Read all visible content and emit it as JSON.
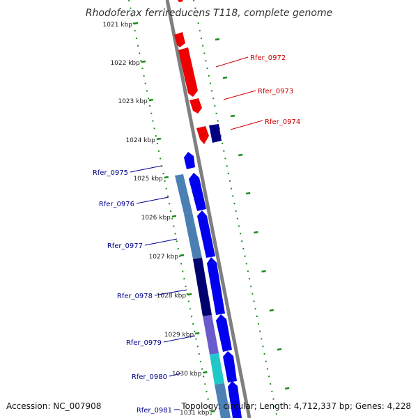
{
  "title": "Rhodoferax ferrireducens T118, complete genome",
  "footer": {
    "accession": "Accession: NC_007908",
    "summary": "Topology: circular; Length: 4,712,337 bp; Genes: 4,228"
  },
  "colors": {
    "backbone": "#7f7f7f",
    "tick": "#1a8a1a",
    "forward_strand": "#0000ee",
    "reverse_strand": "#ee0000",
    "label_blue": "#00008b",
    "label_red": "#cc0000"
  },
  "ticks": [
    {
      "kbp": 1021,
      "label": "1021 kbp"
    },
    {
      "kbp": 1022,
      "label": "1022 kbp"
    },
    {
      "kbp": 1023,
      "label": "1023 kbp"
    },
    {
      "kbp": 1024,
      "label": "1024 kbp"
    },
    {
      "kbp": 1025,
      "label": "1025 kbp"
    },
    {
      "kbp": 1026,
      "label": "1026 kbp"
    },
    {
      "kbp": 1027,
      "label": "1027 kbp"
    },
    {
      "kbp": 1028,
      "label": "1028 kbp"
    },
    {
      "kbp": 1029,
      "label": "1029 kbp"
    },
    {
      "kbp": 1030,
      "label": "1030 kbp"
    },
    {
      "kbp": 1031,
      "label": "1031 kbp"
    }
  ],
  "gene_labels": [
    {
      "name": "Rfer_0972",
      "side": "right",
      "color": "#cc0000"
    },
    {
      "name": "Rfer_0973",
      "side": "right",
      "color": "#cc0000"
    },
    {
      "name": "Rfer_0974",
      "side": "right",
      "color": "#cc0000"
    },
    {
      "name": "Rfer_0975",
      "side": "left",
      "color": "#00008b"
    },
    {
      "name": "Rfer_0976",
      "side": "left",
      "color": "#00008b"
    },
    {
      "name": "Rfer_0977",
      "side": "left",
      "color": "#00008b"
    },
    {
      "name": "Rfer_0978",
      "side": "left",
      "color": "#00008b"
    },
    {
      "name": "Rfer_0979",
      "side": "left",
      "color": "#00008b"
    },
    {
      "name": "Rfer_0980",
      "side": "left",
      "color": "#00008b"
    },
    {
      "name": "Rfer_0981",
      "side": "left",
      "color": "#00008b"
    }
  ]
}
